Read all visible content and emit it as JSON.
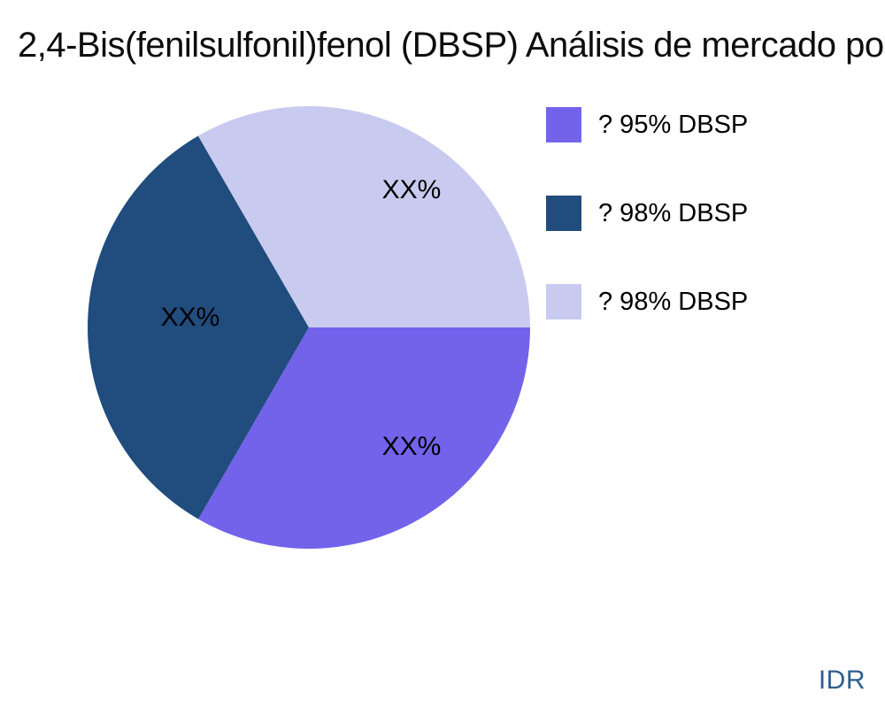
{
  "title": "2,4-Bis(fenilsulfonil)fenol (DBSP) Análisis de mercado po",
  "watermark": "IDR",
  "chart_data": {
    "type": "pie",
    "title": "2,4-Bis(fenilsulfonil)fenol (DBSP) Análisis de mercado po",
    "start_angle_deg": 0,
    "direction": "clockwise",
    "legend_position": "right",
    "slices": [
      {
        "name": "? 95% DBSP",
        "label": "XX%",
        "value": 33.33,
        "color": "#7263ea"
      },
      {
        "name": "? 98% DBSP",
        "label": "XX%",
        "value": 33.33,
        "color": "#204c7e"
      },
      {
        "name": "? 98% DBSP",
        "label": "XX%",
        "value": 33.34,
        "color": "#c9caf0"
      }
    ],
    "colors": {
      "title_text": "#0d0d0d",
      "label_text": "#000000",
      "watermark_text": "#2e5f8e"
    }
  }
}
